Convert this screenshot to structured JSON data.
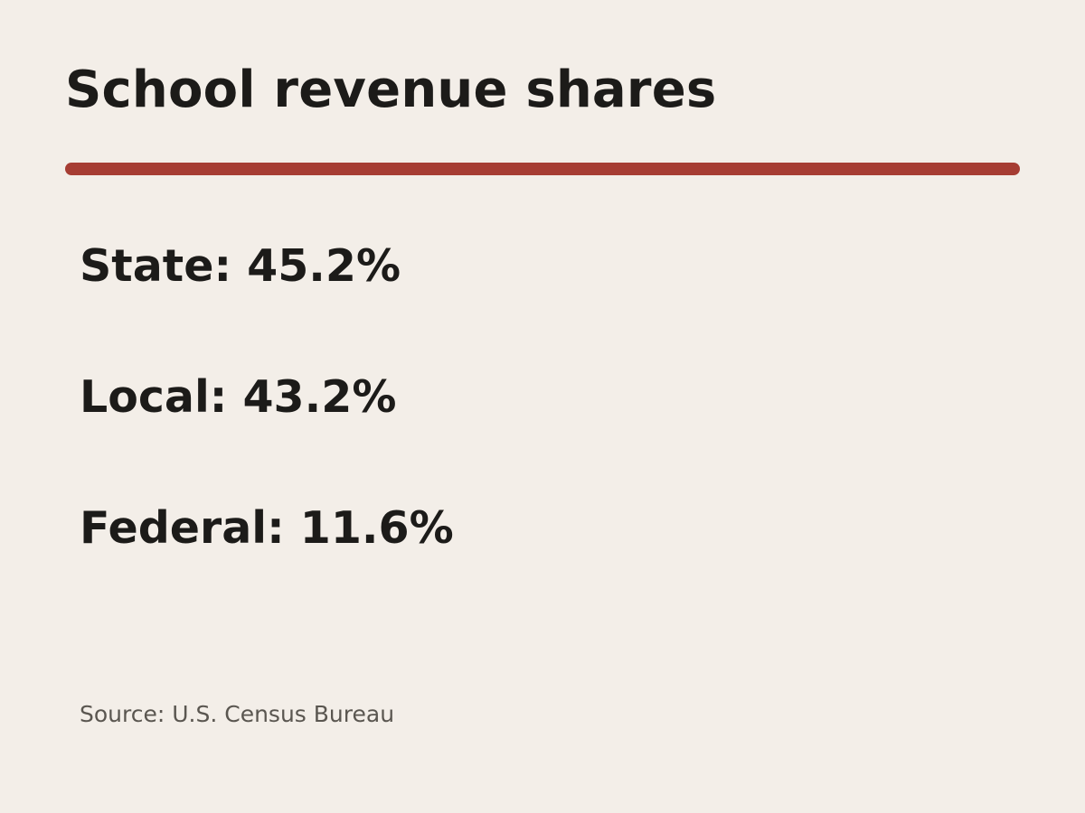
{
  "chart_data": {
    "type": "table",
    "title": "School revenue shares",
    "categories": [
      "State",
      "Local",
      "Federal"
    ],
    "values": [
      45.2,
      43.2,
      11.6
    ],
    "unit": "%",
    "items": [
      {
        "label": "State",
        "value": "45.2%"
      },
      {
        "label": "Local",
        "value": "43.2%"
      },
      {
        "label": "Federal",
        "value": "11.6%"
      }
    ],
    "source": "Source: U.S. Census Bureau"
  },
  "colors": {
    "background": "#f3eee8",
    "accent_rule": "#a63d33",
    "text": "#1c1b19",
    "source_text": "#5a5650"
  }
}
